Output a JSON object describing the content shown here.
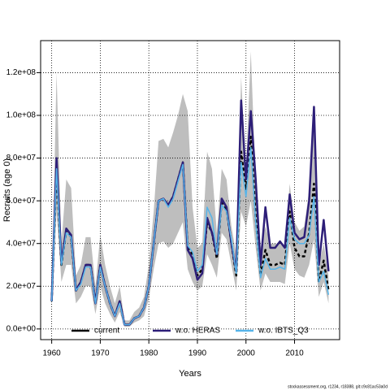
{
  "chart_data": {
    "type": "line",
    "xlabel": "Years",
    "ylabel": "Recruits (age 0)",
    "footnote": "stockassessment.org, r1234, r18388, git:c9c81ac53a0d",
    "x": [
      1960,
      1961,
      1962,
      1963,
      1964,
      1965,
      1966,
      1967,
      1968,
      1969,
      1970,
      1971,
      1972,
      1973,
      1974,
      1975,
      1976,
      1977,
      1978,
      1979,
      1980,
      1981,
      1982,
      1983,
      1984,
      1985,
      1986,
      1987,
      1988,
      1989,
      1990,
      1991,
      1992,
      1993,
      1994,
      1995,
      1996,
      1997,
      1998,
      1999,
      2000,
      2001,
      2002,
      2003,
      2004,
      2005,
      2006,
      2007,
      2008,
      2009,
      2010,
      2011,
      2012,
      2013,
      2014,
      2015,
      2016,
      2017
    ],
    "xlim": [
      1957.72,
      2019.28
    ],
    "xticks": [
      1960,
      1970,
      1980,
      1990,
      2000,
      2010
    ],
    "ylim": [
      -5000000.0,
      135000000.0
    ],
    "yticks": [
      {
        "value": 0,
        "label": "0.0e+00"
      },
      {
        "value": 20000000.0,
        "label": "2.0e+07"
      },
      {
        "value": 40000000.0,
        "label": "4.0e+07"
      },
      {
        "value": 60000000.0,
        "label": "6.0e+07"
      },
      {
        "value": 80000000.0,
        "label": "8.0e+07"
      },
      {
        "value": 100000000.0,
        "label": "1.0e+08"
      },
      {
        "value": 120000000.0,
        "label": "1.2e+08"
      }
    ],
    "grid": true,
    "legend": "bottom",
    "band_color": "#bebebe",
    "band_lower": [
      11000000.0,
      55000000.0,
      22000000.0,
      30000000.0,
      30000000.0,
      12000000.0,
      15000000.0,
      20000000.0,
      20000000.0,
      7000000.0,
      20000000.0,
      12000000.0,
      7000000.0,
      3000000.0,
      8000000.0,
      1000000.0,
      1000000.0,
      3000000.0,
      4000000.0,
      6000000.0,
      14000000.0,
      28000000.0,
      40000000.0,
      41000000.0,
      38000000.0,
      40000000.0,
      45000000.0,
      50000000.0,
      28000000.0,
      22000000.0,
      18000000.0,
      20000000.0,
      35000000.0,
      30000000.0,
      24000000.0,
      45000000.0,
      42000000.0,
      30000000.0,
      18000000.0,
      55000000.0,
      48000000.0,
      60000000.0,
      38000000.0,
      18000000.0,
      26000000.0,
      22000000.0,
      22000000.0,
      22000000.0,
      21000000.0,
      40000000.0,
      28000000.0,
      25000000.0,
      24000000.0,
      30000000.0,
      42000000.0,
      15000000.0,
      22000000.0,
      12000000.0
    ],
    "band_upper": [
      15000000.0,
      120000000.0,
      40000000.0,
      70000000.0,
      66000000.0,
      25000000.0,
      30000000.0,
      43000000.0,
      43000000.0,
      20000000.0,
      44000000.0,
      30000000.0,
      20000000.0,
      12000000.0,
      20000000.0,
      4000000.0,
      4000000.0,
      8000000.0,
      10000000.0,
      15000000.0,
      30000000.0,
      55000000.0,
      88000000.0,
      89000000.0,
      85000000.0,
      92000000.0,
      100000000.0,
      110000000.0,
      102000000.0,
      57000000.0,
      38000000.0,
      40000000.0,
      83000000.0,
      75000000.0,
      45000000.0,
      75000000.0,
      70000000.0,
      48000000.0,
      35000000.0,
      118000000.0,
      75000000.0,
      130000000.0,
      68000000.0,
      38000000.0,
      48000000.0,
      40000000.0,
      40000000.0,
      40000000.0,
      38000000.0,
      68000000.0,
      50000000.0,
      46000000.0,
      48000000.0,
      65000000.0,
      105000000.0,
      30000000.0,
      40000000.0,
      25000000.0
    ],
    "series": [
      {
        "name": "current",
        "color": "#000000",
        "dashed": true,
        "width": 2.5,
        "values": [
          13000000.0,
          75000000.0,
          30000000.0,
          46000000.0,
          43000000.0,
          18000000.0,
          22000000.0,
          30000000.0,
          30000000.0,
          12000000.0,
          30000000.0,
          20000000.0,
          12000000.0,
          6000000.0,
          13000000.0,
          2000000.0,
          2000000.0,
          5000000.0,
          6000000.0,
          10000000.0,
          20000000.0,
          40000000.0,
          60000000.0,
          61000000.0,
          58000000.0,
          62000000.0,
          70000000.0,
          78000000.0,
          38000000.0,
          35000000.0,
          25000000.0,
          28000000.0,
          50000000.0,
          45000000.0,
          33000000.0,
          60000000.0,
          56000000.0,
          40000000.0,
          25000000.0,
          83000000.0,
          65000000.0,
          90000000.0,
          52000000.0,
          25000000.0,
          37000000.0,
          30000000.0,
          30000000.0,
          31000000.0,
          30000000.0,
          55000000.0,
          38000000.0,
          34000000.0,
          34000000.0,
          45000000.0,
          68000000.0,
          22000000.0,
          32000000.0,
          18000000.0
        ]
      },
      {
        "name": "w.o. HERAS",
        "color": "#2d1e78",
        "dashed": false,
        "width": 2.5,
        "values": [
          13000000.0,
          80000000.0,
          31000000.0,
          47000000.0,
          44000000.0,
          18000000.0,
          22000000.0,
          30000000.0,
          30000000.0,
          12000000.0,
          30000000.0,
          20000000.0,
          12000000.0,
          6000000.0,
          13000000.0,
          2000000.0,
          2000000.0,
          5000000.0,
          6000000.0,
          10000000.0,
          20000000.0,
          40000000.0,
          60000000.0,
          61000000.0,
          58000000.0,
          62000000.0,
          70000000.0,
          78000000.0,
          37000000.0,
          33000000.0,
          23000000.0,
          26000000.0,
          52000000.0,
          45000000.0,
          35000000.0,
          61000000.0,
          57000000.0,
          40000000.0,
          27000000.0,
          107000000.0,
          70000000.0,
          102000000.0,
          70000000.0,
          30000000.0,
          57000000.0,
          38000000.0,
          38000000.0,
          41000000.0,
          38000000.0,
          63000000.0,
          45000000.0,
          42000000.0,
          43000000.0,
          60000000.0,
          104000000.0,
          30000000.0,
          51000000.0,
          27000000.0
        ]
      },
      {
        "name": "w.o. IBTS_Q3",
        "color": "#56b4e9",
        "dashed": false,
        "width": 1.5,
        "values": [
          13000000.0,
          75000000.0,
          30000000.0,
          45000000.0,
          43000000.0,
          18000000.0,
          21000000.0,
          29000000.0,
          29000000.0,
          12000000.0,
          29000000.0,
          20000000.0,
          12000000.0,
          6000000.0,
          12000000.0,
          2000000.0,
          2000000.0,
          5000000.0,
          6000000.0,
          10000000.0,
          20000000.0,
          40000000.0,
          60000000.0,
          61000000.0,
          57000000.0,
          61000000.0,
          69000000.0,
          77000000.0,
          39000000.0,
          36000000.0,
          27000000.0,
          30000000.0,
          57000000.0,
          52000000.0,
          35000000.0,
          58000000.0,
          55000000.0,
          42000000.0,
          26000000.0,
          78000000.0,
          62000000.0,
          85000000.0,
          50000000.0,
          24000000.0,
          33000000.0,
          28000000.0,
          28000000.0,
          29000000.0,
          28000000.0,
          52000000.0,
          42000000.0,
          40000000.0,
          40000000.0,
          44000000.0,
          62000000.0,
          22000000.0,
          27000000.0,
          16000000.0
        ]
      }
    ]
  }
}
